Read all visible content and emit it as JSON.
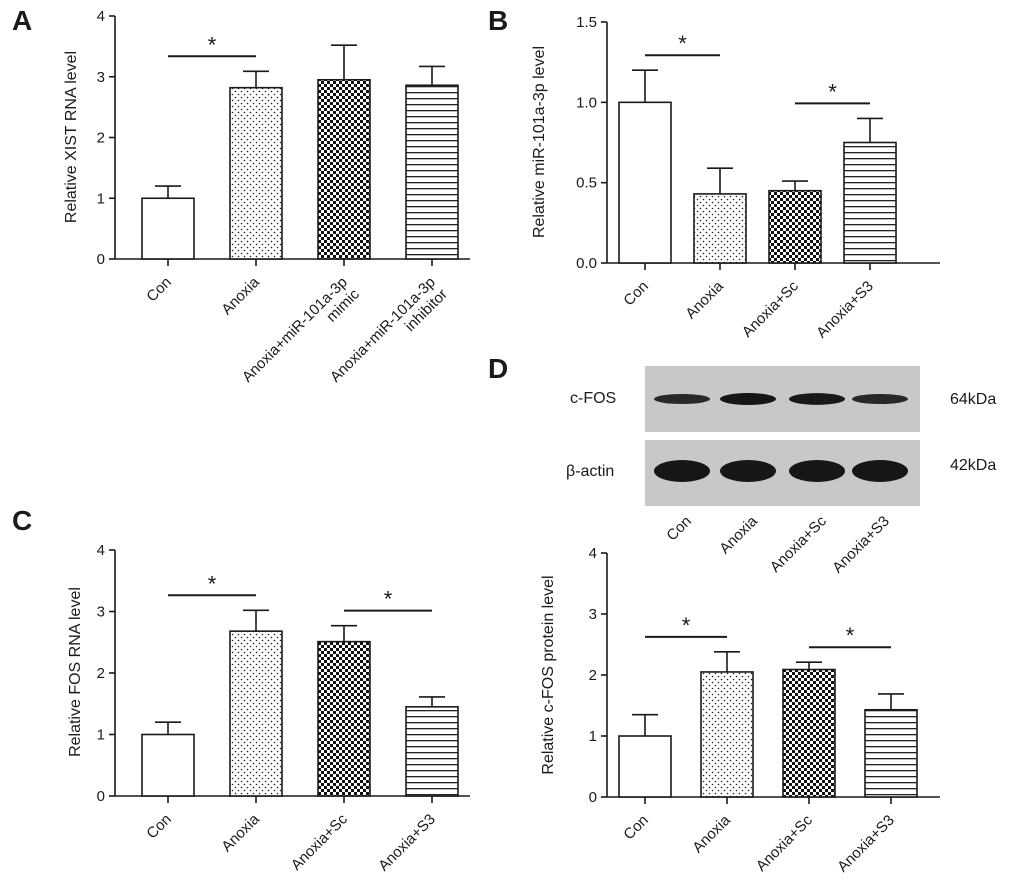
{
  "chart_data": [
    {
      "panel": "A",
      "type": "bar",
      "title": "",
      "ylabel": "Relative XIST RNA level",
      "ylim": [
        0,
        4
      ],
      "yticks": [
        "0",
        "1",
        "2",
        "3",
        "4"
      ],
      "categories": [
        "Con",
        "Anoxia",
        "Anoxia+miR-101a-3p\nmimic",
        "Anoxia+miR-101a-3p\ninhibitor"
      ],
      "values": [
        1.0,
        2.82,
        2.95,
        2.86
      ],
      "errors": [
        0.2,
        0.27,
        0.57,
        0.31
      ],
      "patterns": [
        "none",
        "dots",
        "checker",
        "hlines"
      ],
      "significance": [
        {
          "from": 0,
          "to": 1,
          "label": "*"
        }
      ]
    },
    {
      "panel": "B",
      "type": "bar",
      "title": "",
      "ylabel": "Relative miR-101a-3p level",
      "ylim": [
        0,
        1.5
      ],
      "yticks": [
        "0.0",
        "0.5",
        "1.0",
        "1.5"
      ],
      "categories": [
        "Con",
        "Anoxia",
        "Anoxia+Sc",
        "Anoxia+S3"
      ],
      "values": [
        1.0,
        0.43,
        0.45,
        0.75
      ],
      "errors": [
        0.2,
        0.16,
        0.06,
        0.15
      ],
      "patterns": [
        "none",
        "dots",
        "checker",
        "hlines"
      ],
      "significance": [
        {
          "from": 0,
          "to": 1,
          "label": "*"
        },
        {
          "from": 2,
          "to": 3,
          "label": "*"
        }
      ]
    },
    {
      "panel": "C",
      "type": "bar",
      "title": "",
      "ylabel": "Relative FOS RNA level",
      "ylim": [
        0,
        4
      ],
      "yticks": [
        "0",
        "1",
        "2",
        "3",
        "4"
      ],
      "categories": [
        "Con",
        "Anoxia",
        "Anoxia+Sc",
        "Anoxia+S3"
      ],
      "values": [
        1.0,
        2.68,
        2.51,
        1.45
      ],
      "errors": [
        0.2,
        0.34,
        0.26,
        0.16
      ],
      "patterns": [
        "none",
        "dots",
        "checker",
        "hlines"
      ],
      "significance": [
        {
          "from": 0,
          "to": 1,
          "label": "*"
        },
        {
          "from": 2,
          "to": 3,
          "label": "*"
        }
      ]
    },
    {
      "panel": "D",
      "type": "bar",
      "title": "",
      "ylabel": "Relative c-FOS protein level",
      "ylim": [
        0,
        4
      ],
      "yticks": [
        "0",
        "1",
        "2",
        "3",
        "4"
      ],
      "categories": [
        "Con",
        "Anoxia",
        "Anoxia+Sc",
        "Anoxia+S3"
      ],
      "values": [
        1.0,
        2.05,
        2.09,
        1.43
      ],
      "errors": [
        0.35,
        0.33,
        0.12,
        0.26
      ],
      "patterns": [
        "none",
        "dots",
        "checker",
        "hlines"
      ],
      "significance": [
        {
          "from": 0,
          "to": 1,
          "label": "*"
        },
        {
          "from": 2,
          "to": 3,
          "label": "*"
        }
      ]
    }
  ],
  "blot": {
    "panel": "D",
    "rows": [
      {
        "label": "c-FOS",
        "size": "64kDa",
        "band_intensity": [
          0.6,
          1.0,
          0.95,
          0.6
        ]
      },
      {
        "label": "β-actin",
        "size": "42kDa",
        "band_intensity": [
          1.0,
          1.0,
          1.0,
          1.0
        ]
      }
    ],
    "lanes": [
      "Con",
      "Anoxia",
      "Anoxia+Sc",
      "Anoxia+S3"
    ]
  },
  "style": {
    "bar_stroke": "#1a1a1a",
    "blot_bg": "#c9c9c9",
    "band_color": "#161616"
  }
}
